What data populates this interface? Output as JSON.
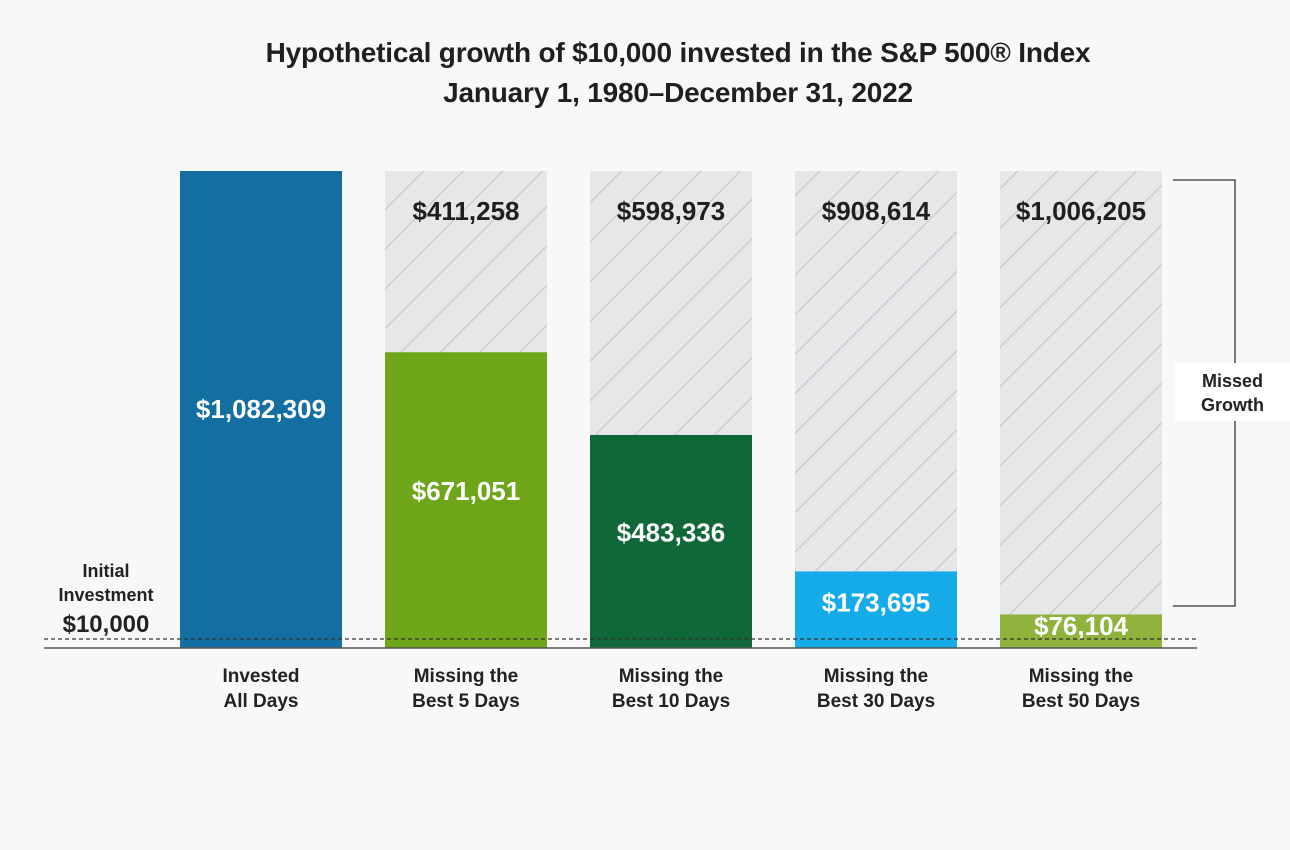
{
  "header": {
    "title_line1": "Hypothetical growth of $10,000 invested in the S&P 500® Index",
    "title_line2": "January 1, 1980–December 31, 2022"
  },
  "annotations": {
    "initial_line1": "Initial",
    "initial_line2": "Investment",
    "initial_value": "$10,000",
    "missed_line1": "Missed",
    "missed_line2": "Growth"
  },
  "chart_data": {
    "type": "bar",
    "title": "Hypothetical growth of $10,000 invested in the S&P 500® Index",
    "subtitle": "January 1, 1980–December 31, 2022",
    "ylim": [
      0,
      1082309
    ],
    "initial_investment": 10000,
    "total": 1082309,
    "bars": [
      {
        "line1": "Invested",
        "line2": "All Days",
        "value": 1082309,
        "value_label": "$1,082,309",
        "missed": 0,
        "missed_label": "",
        "color": "#136fa1"
      },
      {
        "line1": "Missing the",
        "line2": "Best 5 Days",
        "value": 671051,
        "value_label": "$671,051",
        "missed": 411258,
        "missed_label": "$411,258",
        "color": "#6fa519"
      },
      {
        "line1": "Missing the",
        "line2": "Best 10 Days",
        "value": 483336,
        "value_label": "$483,336",
        "missed": 598973,
        "missed_label": "$598,973",
        "color": "#106738"
      },
      {
        "line1": "Missing the",
        "line2": "Best 30 Days",
        "value": 173695,
        "value_label": "$173,695",
        "missed": 908614,
        "missed_label": "$908,614",
        "color": "#15aae8"
      },
      {
        "line1": "Missing the",
        "line2": "Best 50 Days",
        "value": 76104,
        "value_label": "$76,104",
        "missed": 1006205,
        "missed_label": "$1,006,205",
        "color": "#8fb33d"
      }
    ],
    "colors": {
      "missed_fill": "#e6e7e9",
      "hatch": "#c5c6c9",
      "background": "#f8f8f8"
    }
  }
}
